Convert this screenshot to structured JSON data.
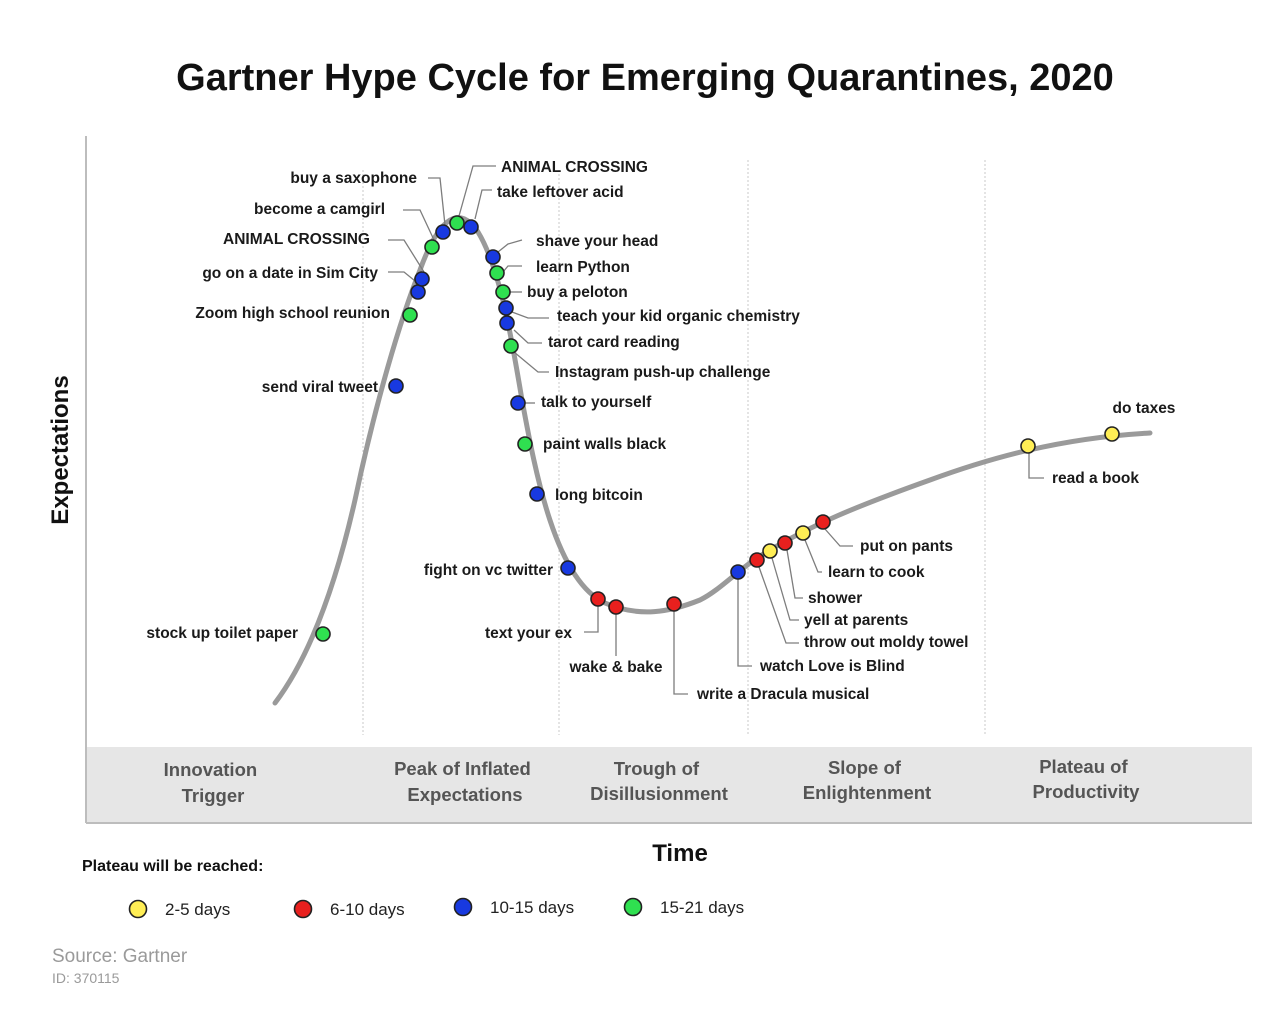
{
  "colors": {
    "yellow": "#ffee55",
    "red": "#e8201e",
    "blue": "#1839e0",
    "green": "#2fe050",
    "curve": "#9a9a9a",
    "band": "#e6e6e6"
  },
  "chart_data": {
    "type": "scatter",
    "title": "Gartner Hype Cycle for Emerging Quarantines, 2020",
    "xlabel": "Time",
    "ylabel": "Expectations",
    "phases": [
      {
        "line1": "Innovation",
        "line2": "Trigger"
      },
      {
        "line1": "Peak of Inflated",
        "line2": "Expectations"
      },
      {
        "line1": "Trough of",
        "line2": "Disillusionment"
      },
      {
        "line1": "Slope of",
        "line2": "Enlightenment"
      },
      {
        "line1": "Plateau of",
        "line2": "Productivity"
      }
    ],
    "points": [
      {
        "label": "stock up toilet paper",
        "category": "15-21 days"
      },
      {
        "label": "send viral tweet",
        "category": "10-15 days"
      },
      {
        "label": "Zoom high school reunion",
        "category": "15-21 days"
      },
      {
        "label": "go on a date in Sim City",
        "category": "10-15 days"
      },
      {
        "label": "ANIMAL CROSSING",
        "category": "10-15 days"
      },
      {
        "label": "become a camgirl",
        "category": "15-21 days"
      },
      {
        "label": "buy a saxophone",
        "category": "10-15 days"
      },
      {
        "label": "ANIMAL CROSSING",
        "category": "15-21 days"
      },
      {
        "label": "take leftover acid",
        "category": "10-15 days"
      },
      {
        "label": "shave your head",
        "category": "10-15 days"
      },
      {
        "label": "learn Python",
        "category": "15-21 days"
      },
      {
        "label": "buy a peloton",
        "category": "15-21 days"
      },
      {
        "label": "teach your kid organic chemistry",
        "category": "10-15 days"
      },
      {
        "label": "tarot card reading",
        "category": "10-15 days"
      },
      {
        "label": "Instagram push-up challenge",
        "category": "15-21 days"
      },
      {
        "label": "talk to yourself",
        "category": "10-15 days"
      },
      {
        "label": "paint walls black",
        "category": "15-21 days"
      },
      {
        "label": "long bitcoin",
        "category": "10-15 days"
      },
      {
        "label": "fight on vc twitter",
        "category": "10-15 days"
      },
      {
        "label": "text your ex",
        "category": "6-10 days"
      },
      {
        "label": "wake & bake",
        "category": "6-10 days"
      },
      {
        "label": "write a Dracula musical",
        "category": "6-10 days"
      },
      {
        "label": "watch Love is Blind",
        "category": "10-15 days"
      },
      {
        "label": "throw out moldy towel",
        "category": "6-10 days"
      },
      {
        "label": "yell at parents",
        "category": "2-5 days"
      },
      {
        "label": "shower",
        "category": "6-10 days"
      },
      {
        "label": "learn to cook",
        "category": "2-5 days"
      },
      {
        "label": "put on pants",
        "category": "6-10 days"
      },
      {
        "label": "read a book",
        "category": "2-5 days"
      },
      {
        "label": "do taxes",
        "category": "2-5 days"
      }
    ],
    "legend_title": "Plateau will be reached:",
    "legend": [
      {
        "label": "2-5 days",
        "color": "#ffee55"
      },
      {
        "label": "6-10 days",
        "color": "#e8201e"
      },
      {
        "label": "10-15 days",
        "color": "#1839e0"
      },
      {
        "label": "15-21 days",
        "color": "#2fe050"
      }
    ],
    "grid": false
  },
  "source": {
    "text": "Source: Gartner",
    "id": "ID: 370115"
  }
}
